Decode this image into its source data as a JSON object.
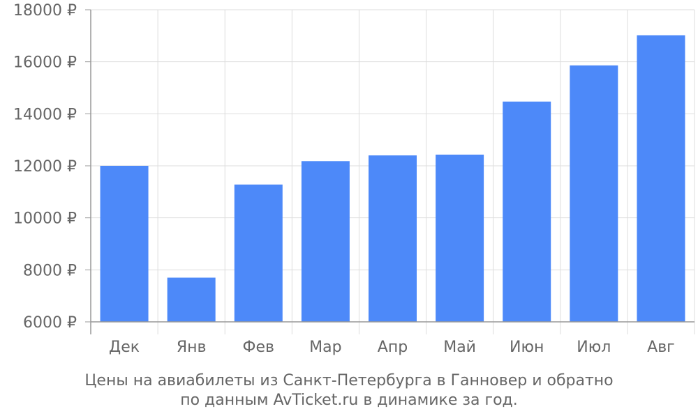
{
  "chart_data": {
    "type": "bar",
    "categories": [
      "Дек",
      "Янв",
      "Фев",
      "Мар",
      "Апр",
      "Май",
      "Июн",
      "Июл",
      "Авг"
    ],
    "values": [
      12000,
      7700,
      11280,
      12180,
      12400,
      12430,
      14470,
      15860,
      17020
    ],
    "ylim": [
      6000,
      18000
    ],
    "yticks": [
      6000,
      8000,
      10000,
      12000,
      14000,
      16000,
      18000
    ],
    "y_unit_suffix": " ₽",
    "grid": true,
    "bar_color": "#4d89f9",
    "grid_color": "#dddddd",
    "axis_color": "#999999",
    "text_color": "#666666"
  },
  "caption": {
    "line1": "Цены на авиабилеты из Санкт-Петербурга в Ганновер и обратно",
    "line2": "по данным AvTicket.ru в динамике за год."
  }
}
